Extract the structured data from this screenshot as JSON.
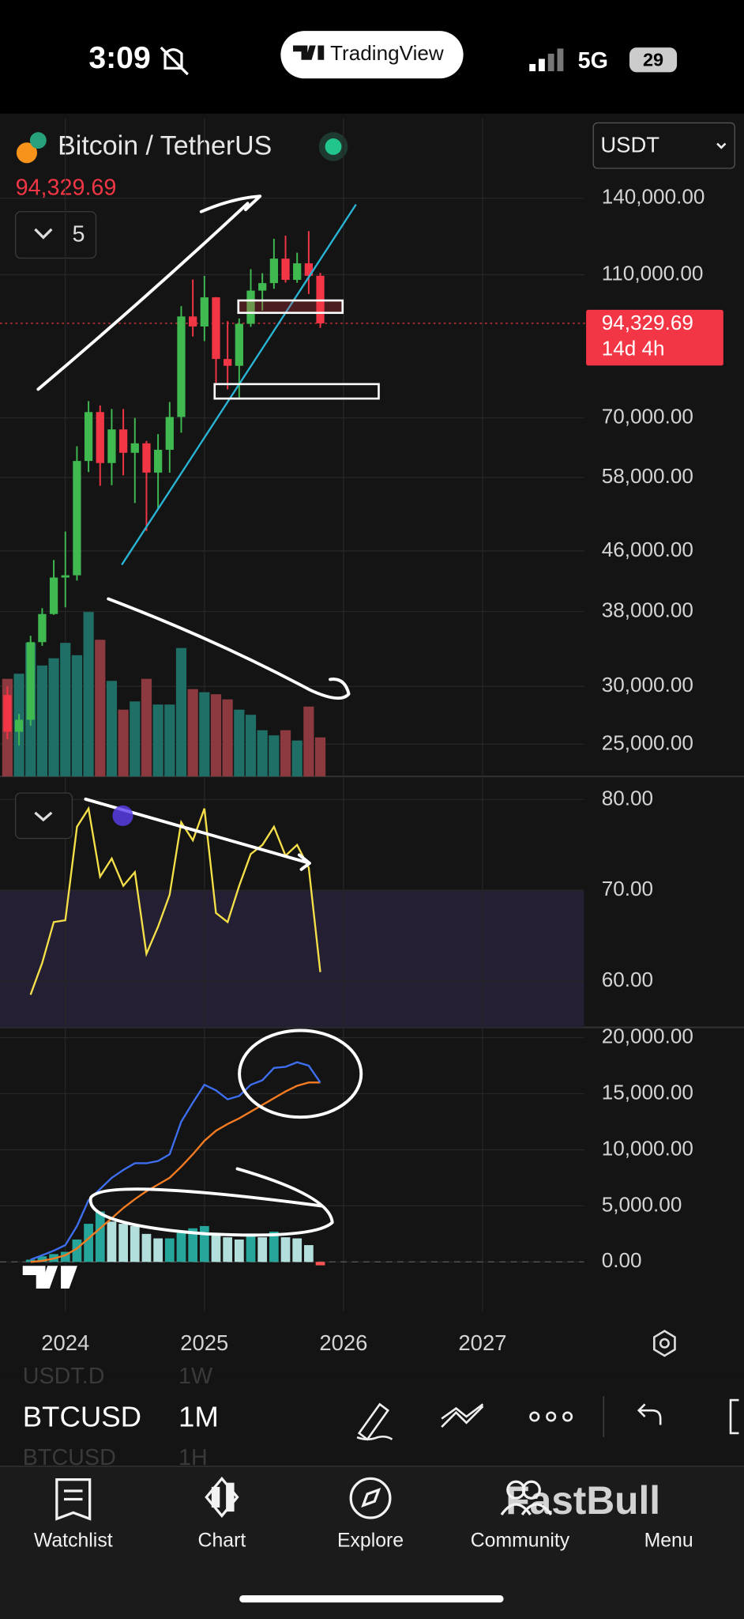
{
  "status_bar": {
    "time": "3:09",
    "app": "TradingView",
    "network": "5G",
    "battery": "29"
  },
  "header": {
    "symbol": "Bitcoin / TetherUS",
    "last_price": "94,329.69",
    "indicators_count": "5",
    "currency": "USDT"
  },
  "price_label": {
    "price": "94,329.69",
    "countdown": "14d 4h"
  },
  "chart_data": {
    "type": "candlestick",
    "x": [
      "2023-08",
      "2023-09",
      "2023-10",
      "2023-11",
      "2023-12",
      "2024-01",
      "2024-02",
      "2024-03",
      "2024-04",
      "2024-05",
      "2024-06",
      "2024-07",
      "2024-08",
      "2024-09",
      "2024-10",
      "2024-11",
      "2024-12",
      "2025-01",
      "2025-02",
      "2025-03",
      "2025-04",
      "2025-05",
      "2025-06",
      "2025-07",
      "2025-08",
      "2025-09",
      "2025-10",
      "2025-11"
    ],
    "open": [
      29200,
      26000,
      27000,
      34500,
      37700,
      42300,
      42600,
      61100,
      71300,
      60700,
      67500,
      62700,
      64600,
      58900,
      63300,
      70200,
      96400,
      93400,
      102400,
      84300,
      82500,
      94200,
      104600,
      107100,
      115700,
      108200,
      114000,
      109600
    ],
    "high": [
      30000,
      27500,
      35200,
      38400,
      44700,
      48900,
      64000,
      73800,
      72800,
      72000,
      72000,
      70000,
      65100,
      66500,
      73600,
      99600,
      108300,
      109600,
      102500,
      95000,
      95800,
      111900,
      110500,
      123200,
      124400,
      117900,
      126200,
      110600
    ],
    "low": [
      25400,
      24900,
      26500,
      34100,
      37600,
      38500,
      41900,
      59000,
      56500,
      56600,
      58400,
      53500,
      49000,
      52500,
      58900,
      66800,
      90500,
      89200,
      78200,
      76600,
      74500,
      93300,
      98200,
      105200,
      107300,
      107200,
      103500,
      93000
    ],
    "close": [
      26000,
      27000,
      34500,
      37700,
      42300,
      42600,
      61100,
      71300,
      60700,
      67500,
      62700,
      64600,
      58900,
      63300,
      70200,
      96400,
      93400,
      102400,
      84300,
      82500,
      94200,
      104600,
      107100,
      115700,
      108200,
      114000,
      109600,
      94329.69
    ],
    "volume": [
      95,
      100,
      130,
      108,
      115,
      130,
      118,
      160,
      133,
      93,
      65,
      73,
      95,
      70,
      70,
      125,
      85,
      82,
      80,
      75,
      65,
      60,
      45,
      40,
      45,
      35,
      68,
      38
    ],
    "up_color": "#3fb950",
    "down_color": "#f23645",
    "volume_up_color": "#1f6f66",
    "volume_down_color": "#8c3a3f",
    "log": true,
    "xlim": [
      2023.53,
      2027.73
    ],
    "xticks": [
      2024,
      2025,
      2026,
      2027
    ],
    "ylim": [
      22580,
      179900
    ],
    "yticks": [
      {
        "value": 140000,
        "label": "140,000.00"
      },
      {
        "value": 110000,
        "label": "110,000.00"
      },
      {
        "value": 70000,
        "label": "70,000.00"
      },
      {
        "value": 58000,
        "label": "58,000.00"
      },
      {
        "value": 46000,
        "label": "46,000.00"
      },
      {
        "value": 38000,
        "label": "38,000.00"
      },
      {
        "value": 30000,
        "label": "30,000.00"
      },
      {
        "value": 25000,
        "label": "25,000.00"
      }
    ],
    "grid": true,
    "rsi": {
      "color": "#f5e04a",
      "values": [
        null,
        null,
        58.5,
        62,
        66.5,
        66.7,
        77,
        79,
        71.5,
        73.5,
        70.5,
        72,
        63,
        66,
        69.5,
        77.5,
        75.5,
        79,
        67.5,
        66.5,
        70.5,
        74,
        75,
        77,
        73.8,
        75,
        72.5,
        61
      ],
      "band": [
        30,
        70
      ],
      "ylim": [
        54.9,
        82.2
      ],
      "yticks": [
        {
          "value": 80,
          "label": "80.00"
        },
        {
          "value": 70,
          "label": "70.00"
        },
        {
          "value": 60,
          "label": "60.00"
        }
      ]
    },
    "macd": {
      "macd_color": "#3d6ff0",
      "signal_color": "#f57c22",
      "hist_up_color": "#26a69a",
      "hist_fall_color": "#b2dfdb",
      "hist_down_color": "#ff5252",
      "macd": [
        null,
        null,
        200,
        600,
        1000,
        1500,
        3200,
        5500,
        6500,
        7500,
        8200,
        8800,
        8800,
        9000,
        9600,
        12500,
        14200,
        15800,
        15300,
        14500,
        14800,
        15800,
        16200,
        17300,
        17400,
        17800,
        17500,
        16000
      ],
      "signal": [
        null,
        null,
        0,
        100,
        300,
        600,
        1200,
        2100,
        3000,
        3900,
        4800,
        5600,
        6300,
        6900,
        7500,
        8500,
        9600,
        10800,
        11700,
        12300,
        12800,
        13400,
        14000,
        14600,
        15200,
        15700,
        16000,
        16000
      ],
      "histogram": [
        null,
        null,
        200,
        500,
        700,
        900,
        2000,
        3400,
        4500,
        3600,
        3400,
        3200,
        2500,
        2100,
        2100,
        2600,
        3000,
        3200,
        2600,
        2200,
        2000,
        2400,
        2200,
        2700,
        2200,
        2100,
        1500,
        -300
      ],
      "ylim": [
        -1640,
        20730
      ],
      "yticks": [
        {
          "value": 20000,
          "label": "20,000.00"
        },
        {
          "value": 15000,
          "label": "15,000.00"
        },
        {
          "value": 10000,
          "label": "10,000.00"
        },
        {
          "value": 5000,
          "label": "5,000.00"
        },
        {
          "value": 0,
          "label": "0.00"
        }
      ]
    }
  },
  "toolbar": {
    "symbol": "BTCUSD",
    "interval": "1M",
    "prev_symbol": "USDT.D",
    "prev_interval": "1W",
    "next_symbol": "BTCUSD",
    "next_interval": "1H"
  },
  "nav": [
    "Watchlist",
    "Chart",
    "Explore",
    "Community",
    "Menu"
  ],
  "watermark": "FastBull"
}
